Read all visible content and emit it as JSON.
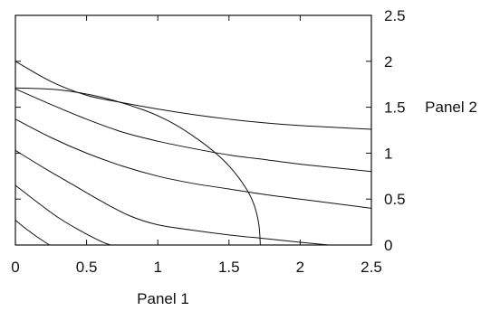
{
  "chart_data": {
    "type": "line",
    "xlabel": "Panel 1",
    "ylabel": "Panel 2",
    "xlim": [
      0,
      2.5
    ],
    "ylim": [
      0,
      2.5
    ],
    "x_ticks": [
      0,
      0.5,
      1,
      1.5,
      2,
      2.5
    ],
    "y_ticks": [
      0,
      0.5,
      1,
      1.5,
      2,
      2.5
    ],
    "x_tick_labels": [
      "0",
      "0.5",
      "1",
      "1.5",
      "2",
      "2.5"
    ],
    "y_tick_labels": [
      "0",
      "0.5",
      "1",
      "1.5",
      "2",
      "2.5"
    ],
    "y_axis_side": "right",
    "grid": false,
    "legend": "none",
    "series": [
      {
        "x": [
          0,
          0.25,
          0.5,
          0.75,
          1.0,
          1.25,
          1.5,
          1.75,
          2.0,
          2.25,
          2.5
        ],
        "y": [
          2.0,
          1.78,
          1.63,
          1.55,
          1.48,
          1.42,
          1.37,
          1.33,
          1.3,
          1.28,
          1.26
        ]
      },
      {
        "x": [
          0,
          0.25,
          0.5,
          0.75,
          1.0,
          1.25,
          1.5,
          1.75,
          2.0,
          2.25,
          2.5
        ],
        "y": [
          1.7,
          1.53,
          1.37,
          1.23,
          1.13,
          1.05,
          0.98,
          0.93,
          0.88,
          0.84,
          0.8
        ]
      },
      {
        "x": [
          0,
          0.25,
          0.5,
          0.75,
          1.0,
          1.25,
          1.5,
          1.75,
          2.0,
          2.25,
          2.5
        ],
        "y": [
          1.37,
          1.17,
          1.0,
          0.86,
          0.75,
          0.67,
          0.61,
          0.55,
          0.5,
          0.45,
          0.4
        ]
      },
      {
        "x": [
          0,
          0.2,
          0.4,
          0.6,
          0.8,
          1.0,
          1.25,
          1.5,
          1.75,
          2.0,
          2.2
        ],
        "y": [
          1.03,
          0.84,
          0.66,
          0.48,
          0.32,
          0.22,
          0.16,
          0.11,
          0.07,
          0.03,
          0.0
        ]
      },
      {
        "x": [
          0,
          0.15,
          0.3,
          0.45,
          0.6,
          0.67
        ],
        "y": [
          0.65,
          0.47,
          0.3,
          0.16,
          0.04,
          0.0
        ]
      },
      {
        "x": [
          0,
          0.08,
          0.16,
          0.24
        ],
        "y": [
          0.27,
          0.17,
          0.08,
          0.0
        ]
      },
      {
        "x": [
          0,
          0.3,
          0.6,
          0.9,
          1.1,
          1.3,
          1.45,
          1.55,
          1.63,
          1.68,
          1.71,
          1.72
        ],
        "y": [
          1.71,
          1.69,
          1.61,
          1.47,
          1.33,
          1.13,
          0.94,
          0.77,
          0.59,
          0.42,
          0.22,
          0.0
        ]
      }
    ]
  }
}
